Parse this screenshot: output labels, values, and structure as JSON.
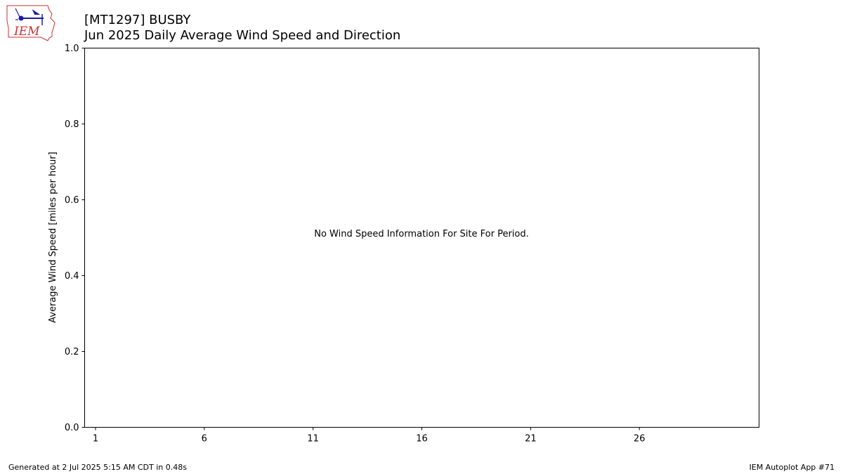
{
  "header": {
    "station_title": "[MT1297] BUSBY",
    "chart_title": "Jun 2025 Daily Average Wind Speed and Direction"
  },
  "logo": {
    "text": "IEM",
    "icon": "iem-iowa-logo-icon",
    "outline_color": "#c83232",
    "mark_color": "#1a1aa8"
  },
  "chart_data": {
    "type": "line",
    "title": "Jun 2025 Daily Average Wind Speed and Direction",
    "xlabel": "",
    "ylabel": "Average Wind Speed [miles per hour]",
    "xlim": [
      0.5,
      31.5
    ],
    "ylim": [
      0.0,
      1.0
    ],
    "xticks": [
      1,
      6,
      11,
      16,
      21,
      26
    ],
    "yticks": [
      "0.0",
      "0.2",
      "0.4",
      "0.6",
      "0.8",
      "1.0"
    ],
    "grid": false,
    "series": [],
    "annotation": "No Wind Speed Information For Site For Period."
  },
  "footer": {
    "generated": "Generated at 2 Jul 2025 5:15 AM CDT in 0.48s",
    "app": "IEM Autoplot App #71"
  }
}
